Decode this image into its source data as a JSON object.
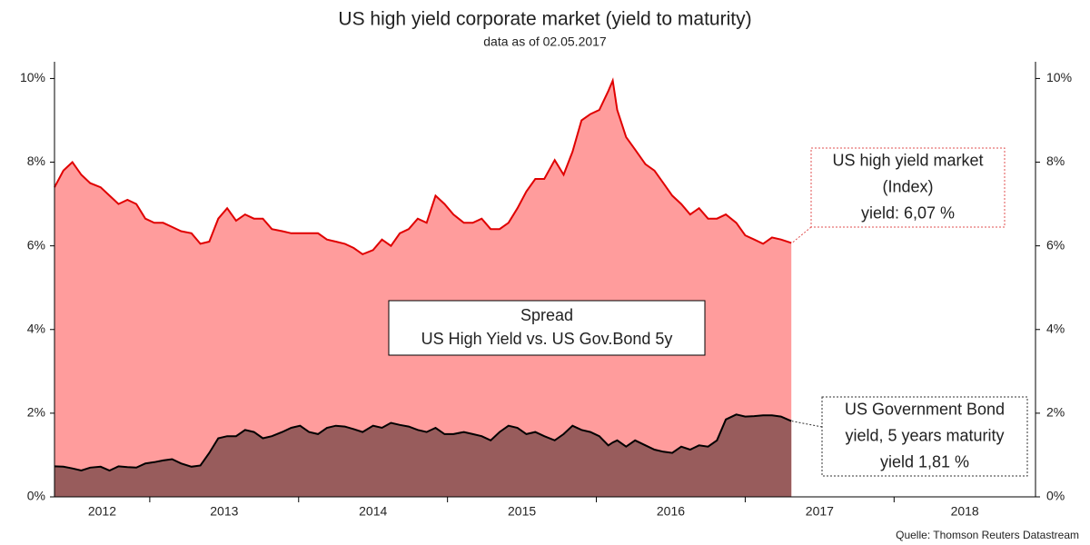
{
  "chart_data": {
    "type": "area",
    "title": "US high yield corporate market (yield to maturity)",
    "subtitle": "data as of 02.05.2017",
    "source": "Quelle: Thomson Reuters Datastream",
    "x": [
      2012.36,
      2012.42,
      2012.48,
      2012.54,
      2012.6,
      2012.67,
      2012.73,
      2012.79,
      2012.85,
      2012.91,
      2012.97,
      2013.03,
      2013.09,
      2013.15,
      2013.21,
      2013.28,
      2013.34,
      2013.4,
      2013.46,
      2013.52,
      2013.58,
      2013.64,
      2013.7,
      2013.76,
      2013.82,
      2013.89,
      2013.95,
      2014.01,
      2014.07,
      2014.13,
      2014.19,
      2014.25,
      2014.31,
      2014.37,
      2014.43,
      2014.5,
      2014.56,
      2014.62,
      2014.68,
      2014.74,
      2014.8,
      2014.86,
      2014.92,
      2014.98,
      2015.04,
      2015.11,
      2015.17,
      2015.23,
      2015.29,
      2015.35,
      2015.41,
      2015.47,
      2015.53,
      2015.59,
      2015.65,
      2015.72,
      2015.78,
      2015.84,
      2015.9,
      2015.96,
      2016.02,
      2016.08,
      2016.11,
      2016.14,
      2016.2,
      2016.26,
      2016.33,
      2016.39,
      2016.45,
      2016.51,
      2016.57,
      2016.63,
      2016.69,
      2016.75,
      2016.81,
      2016.87,
      2016.94,
      2017.0,
      2017.06,
      2017.12,
      2017.18,
      2017.24,
      2017.31
    ],
    "series": [
      {
        "color": "#e00000",
        "fill": "#ff9c9c",
        "values": [
          7.4,
          7.8,
          8.0,
          7.7,
          7.5,
          7.4,
          7.2,
          7.0,
          7.1,
          7.0,
          6.65,
          6.55,
          6.55,
          6.45,
          6.35,
          6.3,
          6.05,
          6.1,
          6.65,
          6.9,
          6.6,
          6.75,
          6.65,
          6.65,
          6.4,
          6.35,
          6.3,
          6.3,
          6.3,
          6.3,
          6.15,
          6.1,
          6.05,
          5.95,
          5.8,
          5.9,
          6.15,
          6.0,
          6.3,
          6.4,
          6.65,
          6.55,
          7.2,
          7.0,
          6.75,
          6.55,
          6.55,
          6.65,
          6.4,
          6.4,
          6.55,
          6.9,
          7.3,
          7.6,
          7.6,
          8.05,
          7.7,
          8.25,
          9.0,
          9.15,
          9.25,
          9.7,
          9.95,
          9.25,
          8.6,
          8.3,
          7.95,
          7.8,
          7.5,
          7.2,
          7.0,
          6.75,
          6.9,
          6.65,
          6.65,
          6.75,
          6.55,
          6.25,
          6.15,
          6.05,
          6.2,
          6.15,
          6.07
        ]
      },
      {
        "color": "#000000",
        "fill": "#985c5c",
        "values": [
          0.73,
          0.72,
          0.68,
          0.63,
          0.7,
          0.72,
          0.63,
          0.73,
          0.71,
          0.7,
          0.8,
          0.83,
          0.87,
          0.9,
          0.8,
          0.72,
          0.75,
          1.05,
          1.4,
          1.45,
          1.45,
          1.6,
          1.55,
          1.4,
          1.45,
          1.55,
          1.65,
          1.7,
          1.55,
          1.5,
          1.65,
          1.7,
          1.68,
          1.62,
          1.55,
          1.7,
          1.65,
          1.77,
          1.72,
          1.68,
          1.6,
          1.55,
          1.65,
          1.5,
          1.5,
          1.55,
          1.5,
          1.45,
          1.35,
          1.55,
          1.7,
          1.65,
          1.5,
          1.55,
          1.45,
          1.35,
          1.5,
          1.7,
          1.6,
          1.55,
          1.45,
          1.23,
          1.3,
          1.35,
          1.2,
          1.35,
          1.23,
          1.13,
          1.08,
          1.05,
          1.2,
          1.13,
          1.23,
          1.2,
          1.35,
          1.85,
          1.97,
          1.92,
          1.93,
          1.95,
          1.95,
          1.92,
          1.81
        ]
      }
    ],
    "xlim": [
      2012.36,
      2018.95
    ],
    "xticks": [
      2012,
      2013,
      2014,
      2015,
      2016,
      2017,
      2018
    ],
    "ylim": [
      0,
      10.4
    ],
    "yticks": [
      {
        "value": 0,
        "label": "0%"
      },
      {
        "value": 2,
        "label": "2%"
      },
      {
        "value": 4,
        "label": "4%"
      },
      {
        "value": 6,
        "label": "6%"
      },
      {
        "value": 8,
        "label": "8%"
      },
      {
        "value": 10,
        "label": "10%"
      }
    ],
    "annotations": [
      {
        "lines": [
          "Spread",
          "US High Yield vs. US Gov.Bond 5y"
        ]
      },
      {
        "lines": [
          "US high yield market",
          "(Index)",
          "yield: 6,07 %"
        ]
      },
      {
        "lines": [
          "US Government Bond",
          "yield, 5 years maturity",
          "yield 1,81 %"
        ]
      }
    ]
  }
}
